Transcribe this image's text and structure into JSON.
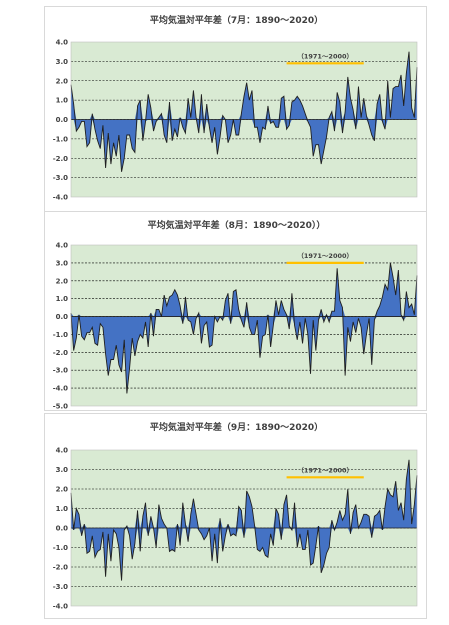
{
  "colors": {
    "plot_bg": "#d9ead3",
    "area_fill": "#4472c4",
    "line": "#1f1f1f",
    "ref_line": "#ffc000",
    "grid": "#000000"
  },
  "chart_data": [
    {
      "type": "area",
      "title": "平均気温対平年差（7月：1890～2020）",
      "xlabel": "",
      "ylabel": "",
      "x_range": [
        1890,
        2020
      ],
      "ylim": [
        -4.0,
        4.0
      ],
      "y_ticks": [
        "4.0",
        "3.0",
        "2.0",
        "1.0",
        "0.0",
        "-1.0",
        "-2.0",
        "-3.0",
        "-4.0"
      ],
      "grid": "horizontal dashed",
      "reference": {
        "label": "（1971～2000）",
        "from": 1971,
        "to": 2000,
        "value": 2.9
      },
      "seed": 7,
      "anchors": [
        [
          1890,
          1.8
        ],
        [
          1897,
          -1.2
        ],
        [
          1903,
          -2.5
        ],
        [
          1909,
          -2.7
        ],
        [
          1920,
          0.6
        ],
        [
          1928,
          -1.1
        ],
        [
          1936,
          1.5
        ],
        [
          1945,
          -1.8
        ],
        [
          1956,
          1.9
        ],
        [
          1961,
          -1.2
        ],
        [
          1970,
          1.2
        ],
        [
          1984,
          -2.3
        ],
        [
          1991,
          0.9
        ],
        [
          1994,
          2.2
        ],
        [
          2003,
          -0.8
        ],
        [
          2009,
          2.0
        ],
        [
          2017,
          3.5
        ],
        [
          2020,
          2.7
        ]
      ]
    },
    {
      "type": "area",
      "title": "平均気温対平年差（8月：1890～2020））",
      "xlabel": "",
      "ylabel": "",
      "x_range": [
        1890,
        2020
      ],
      "ylim": [
        -5.0,
        4.0
      ],
      "y_ticks": [
        "4.0",
        "3.0",
        "2.0",
        "1.0",
        "0.0",
        "-1.0",
        "-2.0",
        "-3.0",
        "-4.0",
        "-5.0"
      ],
      "grid": "horizontal dashed",
      "reference": {
        "label": "（1971～2000）",
        "from": 1971,
        "to": 2000,
        "value": 3.0
      },
      "seed": 8,
      "anchors": [
        [
          1890,
          0.2
        ],
        [
          1891,
          -1.9
        ],
        [
          1904,
          -3.3
        ],
        [
          1911,
          -4.3
        ],
        [
          1927,
          1.1
        ],
        [
          1942,
          -1.7
        ],
        [
          1951,
          1.4
        ],
        [
          1961,
          -2.3
        ],
        [
          1973,
          1.3
        ],
        [
          1980,
          -3.2
        ],
        [
          1985,
          -0.3
        ],
        [
          1990,
          2.7
        ],
        [
          1993,
          -3.3
        ],
        [
          2003,
          -2.7
        ],
        [
          2010,
          3.0
        ],
        [
          2013,
          2.6
        ],
        [
          2017,
          0.5
        ],
        [
          2020,
          2.3
        ]
      ]
    },
    {
      "type": "area",
      "title": "平均気温対平年差（9月：1890～2020）",
      "xlabel": "",
      "ylabel": "",
      "x_range": [
        1890,
        2020
      ],
      "ylim": [
        -4.0,
        4.0
      ],
      "y_ticks": [
        "4.0",
        "3.0",
        "2.0",
        "1.0",
        "0.0",
        "-1.0",
        "-2.0",
        "-3.0",
        "-4.0"
      ],
      "grid": "horizontal dashed",
      "reference": {
        "label": "（1971～2000）",
        "from": 1971,
        "to": 2000,
        "value": 2.6
      },
      "seed": 9,
      "anchors": [
        [
          1890,
          1.8
        ],
        [
          1897,
          -1.2
        ],
        [
          1903,
          -2.5
        ],
        [
          1909,
          -2.7
        ],
        [
          1920,
          0.6
        ],
        [
          1928,
          -1.1
        ],
        [
          1936,
          1.5
        ],
        [
          1945,
          -1.8
        ],
        [
          1956,
          1.9
        ],
        [
          1961,
          -1.2
        ],
        [
          1970,
          1.2
        ],
        [
          1984,
          -2.3
        ],
        [
          1991,
          0.9
        ],
        [
          1994,
          2.0
        ],
        [
          2003,
          -0.5
        ],
        [
          2009,
          2.0
        ],
        [
          2017,
          3.5
        ],
        [
          2020,
          2.7
        ]
      ]
    }
  ]
}
